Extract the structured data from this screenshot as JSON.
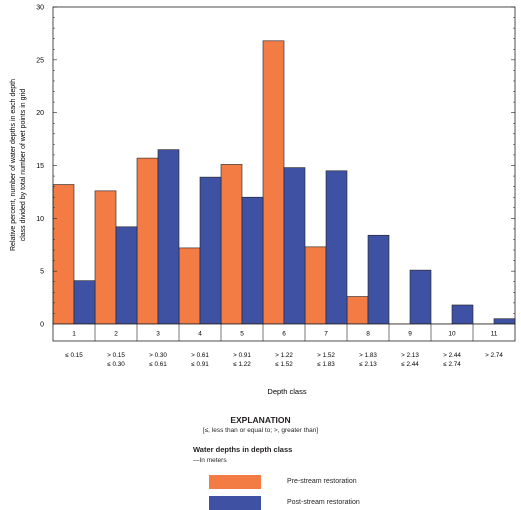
{
  "chart_data": {
    "type": "bar",
    "ylabel": "Relative percent, number of water depths in each depth class divided by total number of wet points in grid",
    "xlabel": "Depth class",
    "ylim": [
      0,
      30
    ],
    "yticks": [
      "0",
      "5",
      "10",
      "15",
      "20",
      "25",
      "30"
    ],
    "categories": [
      "1",
      "2",
      "3",
      "4",
      "5",
      "6",
      "7",
      "8",
      "9",
      "10",
      "11"
    ],
    "category_ranges": [
      [
        "≤ 0.15",
        ""
      ],
      [
        "> 0.15",
        "≤ 0.30"
      ],
      [
        "> 0.30",
        "≤ 0.61"
      ],
      [
        "> 0.61",
        "≤ 0.91"
      ],
      [
        "> 0.91",
        "≤ 1.22"
      ],
      [
        "> 1.22",
        "≤ 1.52"
      ],
      [
        "> 1.52",
        "≤ 1.83"
      ],
      [
        "> 1.83",
        "≤ 2.13"
      ],
      [
        "> 2.13",
        "≤ 2.44"
      ],
      [
        "> 2.44",
        "≤ 2.74"
      ],
      [
        "> 2.74",
        ""
      ]
    ],
    "series": [
      {
        "name": "Pre-stream restoration",
        "color": "#f37c44",
        "values": [
          13.2,
          12.6,
          15.7,
          7.2,
          15.1,
          26.8,
          7.3,
          2.6,
          0,
          0,
          0
        ]
      },
      {
        "name": "Post-stream restoration",
        "color": "#3f51a3",
        "values": [
          4.1,
          9.2,
          16.5,
          13.9,
          12.0,
          14.8,
          14.5,
          8.4,
          5.1,
          1.8,
          0.5
        ]
      }
    ]
  },
  "legend": {
    "title": "EXPLANATION",
    "note": "[≤, less than or equal to; >, greater than]",
    "heading": "Water depths in depth class",
    "sub": "—In meters",
    "items": [
      "Pre-stream restoration",
      "Post-stream restoration"
    ]
  }
}
